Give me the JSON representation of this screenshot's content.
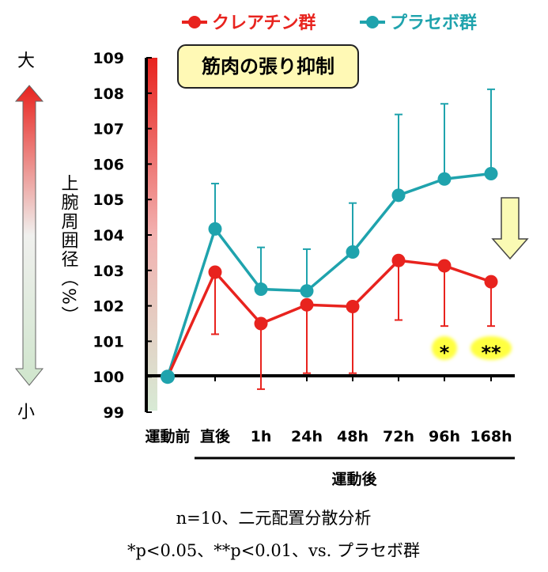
{
  "chart_data": {
    "type": "line",
    "title": "筋肉の張り抑制",
    "ylabel": "上腕周囲径（%）",
    "ylim": [
      99,
      109
    ],
    "yticks": [
      "109",
      "108",
      "107",
      "106",
      "105",
      "104",
      "103",
      "102",
      "101",
      "100",
      "99"
    ],
    "categories": [
      "運動前",
      "直後",
      "1h",
      "24h",
      "48h",
      "72h",
      "96h",
      "168h"
    ],
    "xgroup_label": "運動後",
    "scale_top_label": "大",
    "scale_bottom_label": "小",
    "series": [
      {
        "name": "クレアチン群",
        "color": "#e8231e",
        "values": [
          100,
          102.95,
          101.5,
          102.03,
          101.98,
          103.28,
          103.13,
          102.68
        ],
        "error_dir": "down",
        "error": [
          0,
          1.75,
          1.85,
          1.93,
          1.88,
          1.68,
          1.7,
          1.25
        ]
      },
      {
        "name": "プラセボ群",
        "color": "#1fa3ad",
        "values": [
          100,
          104.17,
          102.47,
          102.42,
          103.52,
          105.12,
          105.58,
          105.73
        ],
        "error_dir": "up",
        "error": [
          0,
          1.28,
          1.18,
          1.18,
          1.38,
          2.28,
          2.12,
          2.38
        ]
      }
    ],
    "significance": [
      {
        "category": "96h",
        "mark": "*"
      },
      {
        "category": "168h",
        "mark": "**"
      }
    ],
    "notes": [
      "n=10、二元配置分散分析",
      "*p<0.05、**p<0.01、vs. プラセボ群"
    ],
    "colors": {
      "title_bg": "#fff9b5",
      "arrow_fill": "#fafab4",
      "highlight": "#ffff40"
    }
  }
}
